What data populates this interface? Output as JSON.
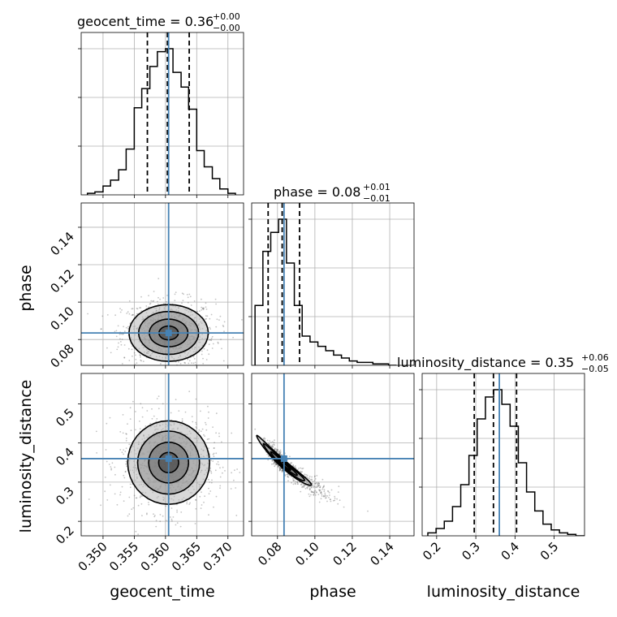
{
  "parameters": [
    "geocent_time",
    "phase",
    "luminosity_distance"
  ],
  "titles": {
    "geocent_time": {
      "main": "geocent_time = 0.36",
      "sup": "+0.00",
      "sub": "−0.00"
    },
    "phase": {
      "main": "phase = 0.08",
      "sup": "+0.01",
      "sub": "−0.01"
    },
    "luminosity_distance": {
      "main": "luminosity_distance = 0.35",
      "sup": "+0.06",
      "sub": "−0.05"
    }
  },
  "colors": {
    "truth": "#4682b4",
    "hist": "#000000",
    "grid": "#b0b0b0"
  },
  "chart_data": {
    "type": "corner",
    "truths": {
      "geocent_time": 0.3605,
      "phase": 0.0835,
      "luminosity_distance": 0.36
    },
    "ranges": {
      "geocent_time": [
        0.3465,
        0.3725
      ],
      "phase": [
        0.0662,
        0.153
      ],
      "luminosity_distance": [
        0.163,
        0.5775
      ]
    },
    "ticks": {
      "geocent_time": [
        0.35,
        0.355,
        0.36,
        0.365,
        0.37
      ],
      "phase": [
        0.08,
        0.1,
        0.12,
        0.14
      ],
      "luminosity_distance": [
        0.2,
        0.3,
        0.4,
        0.5
      ]
    },
    "tick_labels": {
      "geocent_time": [
        "0.350",
        "0.355",
        "0.360",
        "0.365",
        "0.370"
      ],
      "phase": [
        "0.08",
        "0.10",
        "0.12",
        "0.14"
      ],
      "luminosity_distance": [
        "0.2",
        "0.3",
        "0.4",
        "0.5"
      ]
    },
    "quantiles": {
      "geocent_time": [
        0.3571,
        0.3603,
        0.3638
      ],
      "phase": [
        0.075,
        0.0825,
        0.0918
      ],
      "luminosity_distance": [
        0.296,
        0.345,
        0.404
      ]
    },
    "histograms": {
      "geocent_time": {
        "edges": [
          0.3475,
          0.3487,
          0.35,
          0.3512,
          0.3525,
          0.3537,
          0.355,
          0.3562,
          0.3575,
          0.3587,
          0.36,
          0.3612,
          0.3625,
          0.3637,
          0.365,
          0.3662,
          0.3675,
          0.3687,
          0.37,
          0.3712
        ],
        "counts": [
          1,
          2,
          6,
          10,
          17,
          31,
          59,
          72,
          87,
          97,
          99,
          83,
          73,
          58,
          30,
          19,
          11,
          4,
          1
        ]
      },
      "phase": {
        "edges": [
          0.068,
          0.0722,
          0.0764,
          0.0806,
          0.0848,
          0.089,
          0.0932,
          0.0974,
          0.1016,
          0.1058,
          0.11,
          0.1142,
          0.1184,
          0.1226,
          0.1268,
          0.131,
          0.1352,
          0.1394,
          0.1436
        ],
        "counts": [
          41,
          78,
          91,
          100,
          70,
          41,
          20,
          16,
          13,
          10,
          7,
          5,
          3,
          2,
          2,
          1,
          1,
          0
        ]
      },
      "luminosity_distance": {
        "edges": [
          0.1775,
          0.1985,
          0.2195,
          0.2405,
          0.2615,
          0.2825,
          0.3035,
          0.3245,
          0.3455,
          0.3665,
          0.3875,
          0.4085,
          0.4295,
          0.4505,
          0.4715,
          0.4925,
          0.5135,
          0.5345,
          0.5555,
          0.5775
        ],
        "counts": [
          2,
          5,
          10,
          20,
          35,
          55,
          80,
          95,
          100,
          90,
          75,
          50,
          30,
          17,
          8,
          4,
          2,
          1,
          0
        ]
      }
    },
    "contours_2d": [
      {
        "x": "geocent_time",
        "y": "phase",
        "center": [
          0.3605,
          0.0835
        ],
        "sigma_x": 0.0031,
        "sigma_y": 0.0074,
        "levels": [
          0.5,
          1.0,
          1.55,
          2.05
        ]
      },
      {
        "x": "geocent_time",
        "y": "luminosity_distance",
        "center": [
          0.3605,
          0.35
        ],
        "sigma_x": 0.0032,
        "sigma_y": 0.052,
        "levels": [
          0.5,
          1.0,
          1.55,
          2.05
        ]
      },
      {
        "x": "phase",
        "y": "luminosity_distance",
        "center": [
          0.0835,
          0.345
        ],
        "sigma_x": 0.0065,
        "sigma_y": 0.06,
        "levels": [
          0.5,
          1.0,
          1.55,
          2.05
        ]
      }
    ]
  }
}
